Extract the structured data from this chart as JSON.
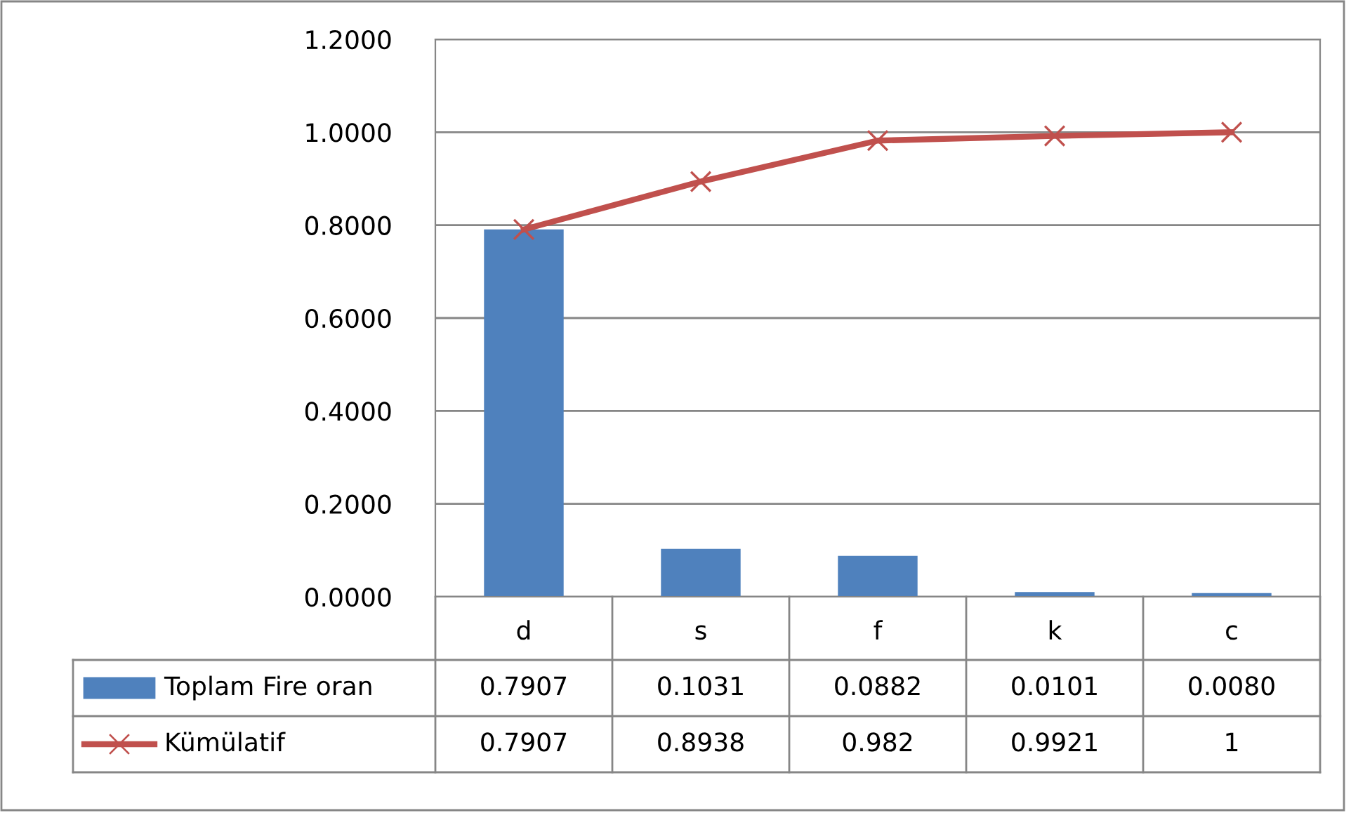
{
  "chart_data": {
    "type": "bar",
    "categories": [
      "d",
      "s",
      "f",
      "k",
      "c"
    ],
    "series": [
      {
        "name": "Toplam Fire oran",
        "color": "#4f81bd",
        "values": [
          0.7907,
          0.1031,
          0.0882,
          0.0101,
          0.008
        ],
        "value_labels": [
          "0.7907",
          "0.1031",
          "0.0882",
          "0.0101",
          "0.0080"
        ]
      },
      {
        "name": "Kümülatif",
        "type": "line",
        "color": "#c0504d",
        "marker": "cross",
        "line_style": "solid",
        "values": [
          0.7907,
          0.8938,
          0.982,
          0.9921,
          1
        ],
        "value_labels": [
          "0.7907",
          "0.8938",
          "0.982",
          "0.9921",
          "1"
        ]
      }
    ],
    "ylim": [
      0,
      1.2
    ],
    "yticks": [
      {
        "value": 0,
        "label": "0.0000"
      },
      {
        "value": 0.2,
        "label": "0.2000"
      },
      {
        "value": 0.4,
        "label": "0.4000"
      },
      {
        "value": 0.6,
        "label": "0.6000"
      },
      {
        "value": 0.8,
        "label": "0.8000"
      },
      {
        "value": 1.0,
        "label": "1.0000"
      },
      {
        "value": 1.2,
        "label": "1.2000"
      }
    ],
    "grid": "y",
    "legend": "bottom"
  }
}
